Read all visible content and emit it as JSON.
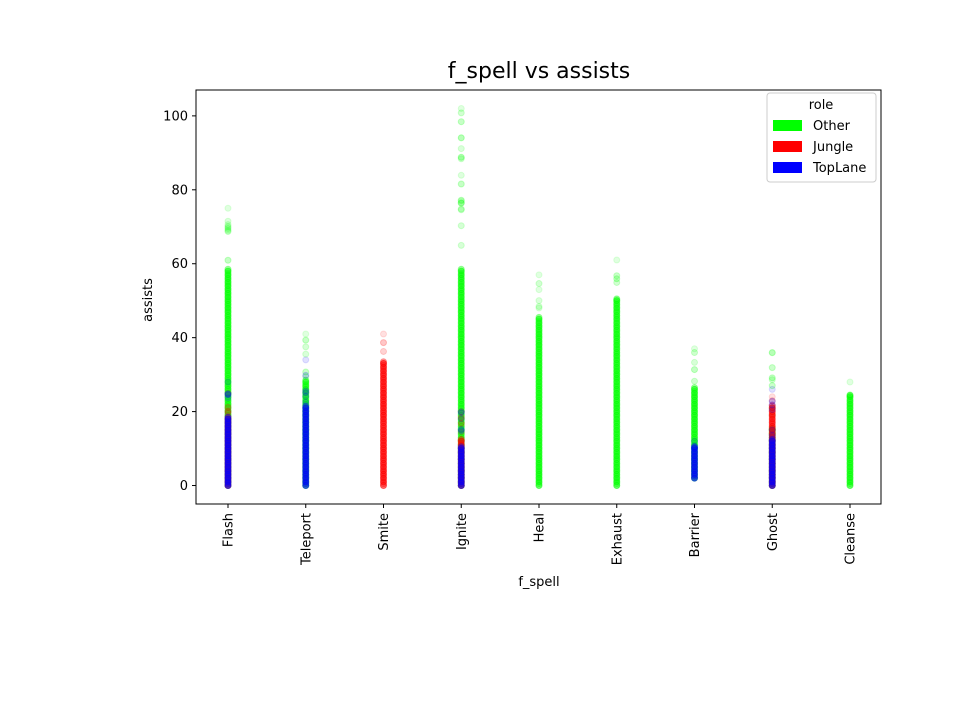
{
  "chart_data": {
    "type": "scatter",
    "title": "f_spell vs assists",
    "xlabel": "f_spell",
    "ylabel": "assists",
    "categories": [
      "Flash",
      "Teleport",
      "Smite",
      "Ignite",
      "Heal",
      "Exhaust",
      "Barrier",
      "Ghost",
      "Cleanse"
    ],
    "ylim": [
      -5,
      107
    ],
    "yticks": [
      0,
      20,
      40,
      60,
      80,
      100
    ],
    "grid": false,
    "legend": {
      "title": "role",
      "placement": "top-right",
      "entries": [
        {
          "name": "Other",
          "color": "#00ff00"
        },
        {
          "name": "Jungle",
          "color": "#ff0000"
        },
        {
          "name": "TopLane",
          "color": "#0000ff"
        }
      ]
    },
    "series": [
      {
        "name": "Other",
        "color": "#00ff00",
        "ranges": [
          {
            "category": "Flash",
            "min": 0,
            "max": 75,
            "dense_max": 58
          },
          {
            "category": "Teleport",
            "min": 0,
            "max": 41,
            "dense_max": 28
          },
          {
            "category": "Ignite",
            "min": 0,
            "max": 102,
            "dense_max": 58
          },
          {
            "category": "Heal",
            "min": 0,
            "max": 57,
            "dense_max": 45
          },
          {
            "category": "Exhaust",
            "min": 0,
            "max": 61,
            "dense_max": 50
          },
          {
            "category": "Barrier",
            "min": 2,
            "max": 37,
            "dense_max": 26
          },
          {
            "category": "Ghost",
            "min": 0,
            "max": 36,
            "dense_max": 15
          },
          {
            "category": "Cleanse",
            "min": 0,
            "max": 28,
            "dense_max": 24
          }
        ]
      },
      {
        "name": "Jungle",
        "color": "#ff0000",
        "ranges": [
          {
            "category": "Flash",
            "min": 0,
            "max": 25,
            "dense_max": 18
          },
          {
            "category": "Smite",
            "min": 0,
            "max": 41,
            "dense_max": 33
          },
          {
            "category": "Ignite",
            "min": 0,
            "max": 20,
            "dense_max": 12
          },
          {
            "category": "Ghost",
            "min": 0,
            "max": 24,
            "dense_max": 21
          }
        ]
      },
      {
        "name": "TopLane",
        "color": "#0000ff",
        "ranges": [
          {
            "category": "Flash",
            "min": 0,
            "max": 28,
            "dense_max": 18
          },
          {
            "category": "Teleport",
            "min": 0,
            "max": 34,
            "dense_max": 21
          },
          {
            "category": "Ignite",
            "min": 0,
            "max": 20,
            "dense_max": 10
          },
          {
            "category": "Barrier",
            "min": 2,
            "max": 12,
            "dense_max": 10
          },
          {
            "category": "Ghost",
            "min": 0,
            "max": 26,
            "dense_max": 12
          }
        ]
      }
    ]
  }
}
